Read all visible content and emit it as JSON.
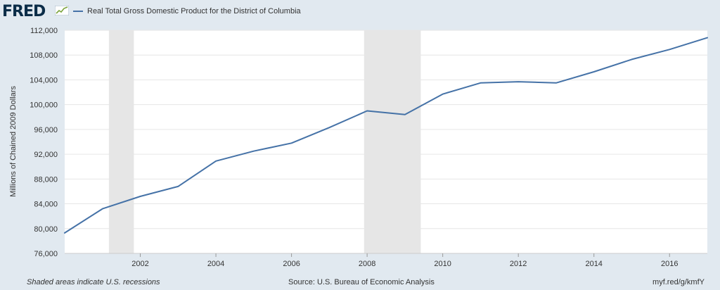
{
  "header": {
    "logo": "FRED",
    "logo_icon": "fred-chart-line-icon"
  },
  "chart_data": {
    "type": "line",
    "title": "",
    "legend": [
      {
        "name": "Real Total Gross Domestic Product for the District of Columbia",
        "color": "#4572a7"
      }
    ],
    "xlabel": "",
    "ylabel": "Millions of Chained 2009 Dollars",
    "xlim": [
      2000,
      2017
    ],
    "ylim": [
      76000,
      112000
    ],
    "x_ticks": [
      2002,
      2004,
      2006,
      2008,
      2010,
      2012,
      2014,
      2016
    ],
    "y_ticks": [
      76000,
      80000,
      84000,
      88000,
      92000,
      96000,
      100000,
      104000,
      108000,
      112000
    ],
    "y_tick_labels": [
      "76,000",
      "80,000",
      "84,000",
      "88,000",
      "92,000",
      "96,000",
      "100,000",
      "104,000",
      "108,000",
      "112,000"
    ],
    "grid": true,
    "recessions": [
      {
        "start": 2001.17,
        "end": 2001.83
      },
      {
        "start": 2007.92,
        "end": 2009.42
      }
    ],
    "series": [
      {
        "name": "Real Total Gross Domestic Product for the District of Columbia",
        "color": "#4572a7",
        "x": [
          2000,
          2001,
          2002,
          2003,
          2004,
          2005,
          2006,
          2007,
          2008,
          2009,
          2010,
          2011,
          2012,
          2013,
          2014,
          2015,
          2016,
          2017
        ],
        "y": [
          79300,
          83200,
          85200,
          86800,
          90900,
          92500,
          93800,
          96300,
          99000,
          98400,
          101700,
          103500,
          103700,
          103500,
          105300,
          107300,
          108900,
          110800
        ]
      }
    ]
  },
  "footer": {
    "note": "Shaded areas indicate U.S. recessions",
    "source": "Source: U.S. Bureau of Economic Analysis",
    "url": "myf.red/g/kmfY"
  }
}
